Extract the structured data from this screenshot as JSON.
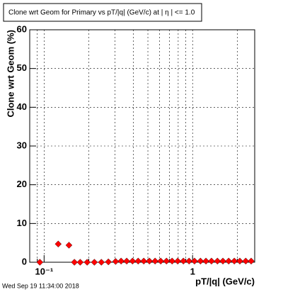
{
  "chart_data": {
    "type": "scatter",
    "title": "Clone wrt Geom for Primary vs pT/|q| (GeV/c) at |  η | <= 1.0",
    "x_label": "pT/|q| (GeV/c)",
    "y_label": "Clone wrt Geom (%)",
    "footer": "Wed Sep 19 11:34:00 2018",
    "log_x": true,
    "grid": true,
    "color": "#ff0000",
    "xlim": [
      0.08,
      2.62
    ],
    "ylim": [
      0,
      60
    ],
    "xticks": [
      {
        "value": 0.1,
        "label": "10⁻¹"
      },
      1
    ],
    "xminorticks": [
      0.09,
      0.2,
      0.3,
      0.4,
      0.5,
      0.6,
      0.7,
      0.8,
      0.9,
      2
    ],
    "yticks": [
      0,
      10,
      20,
      30,
      40,
      50,
      60
    ],
    "x": [
      0.0936,
      0.1245,
      0.147,
      0.16,
      0.175,
      0.195,
      0.218,
      0.243,
      0.271,
      0.303,
      0.33,
      0.36,
      0.394,
      0.43,
      0.469,
      0.512,
      0.559,
      0.61,
      0.667,
      0.728,
      0.794,
      0.867,
      0.947,
      1.03,
      1.13,
      1.23,
      1.34,
      1.47,
      1.6,
      1.75,
      1.91,
      2.08,
      2.28,
      2.48
    ],
    "values": [
      0,
      4.7,
      4.4,
      0,
      0,
      0,
      0,
      0,
      0.1,
      0.2,
      0.3,
      0.3,
      0.3,
      0.3,
      0.3,
      0.3,
      0.3,
      0.3,
      0.3,
      0.3,
      0.3,
      0.3,
      0.3,
      0.3,
      0.3,
      0.3,
      0.3,
      0.3,
      0.3,
      0.3,
      0.3,
      0.3,
      0.3,
      0.3
    ]
  }
}
